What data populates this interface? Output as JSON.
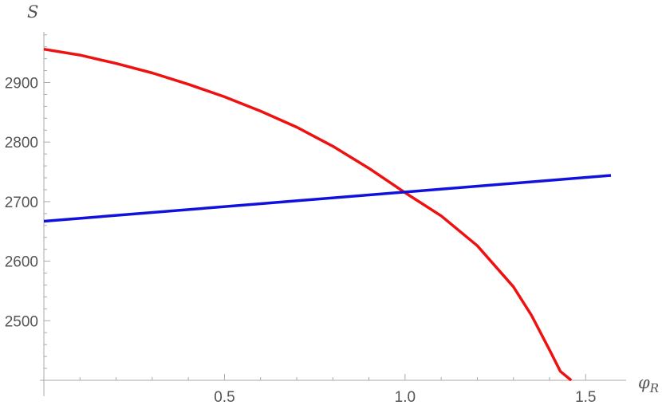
{
  "chart_data": {
    "type": "line",
    "title": "",
    "xlabel": "φ",
    "xlabel_subscript": "R",
    "ylabel": "S",
    "xlim": [
      0,
      1.57
    ],
    "ylim": [
      2400,
      2985
    ],
    "x_ticks": [
      {
        "value": 0.5,
        "label": "0.5"
      },
      {
        "value": 1.0,
        "label": "1.0"
      },
      {
        "value": 1.5,
        "label": "1.5"
      }
    ],
    "y_ticks": [
      {
        "value": 2500,
        "label": "2500"
      },
      {
        "value": 2600,
        "label": "2600"
      },
      {
        "value": 2700,
        "label": "2700"
      },
      {
        "value": 2800,
        "label": "2800"
      },
      {
        "value": 2900,
        "label": "2900"
      }
    ],
    "grid": false,
    "legend": "none",
    "series": [
      {
        "color": "#ee1111",
        "x": [
          0,
          0.1,
          0.2,
          0.3,
          0.4,
          0.5,
          0.6,
          0.7,
          0.8,
          0.9,
          1.0,
          1.1,
          1.2,
          1.3,
          1.35,
          1.4,
          1.43,
          1.46
        ],
        "y": [
          2956,
          2946,
          2932,
          2916,
          2897,
          2876,
          2852,
          2825,
          2793,
          2756,
          2715,
          2676,
          2626,
          2557,
          2509,
          2451,
          2415,
          2400
        ]
      },
      {
        "color": "#1111dd",
        "x": [
          0,
          1.57
        ],
        "y": [
          2667,
          2744
        ]
      }
    ]
  }
}
